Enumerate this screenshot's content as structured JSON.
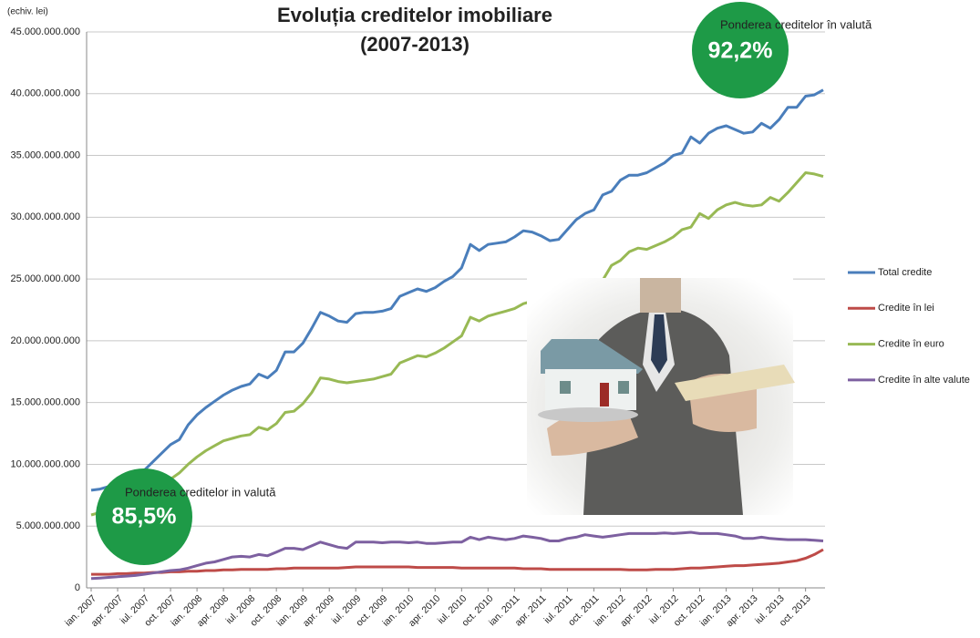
{
  "chart_data": {
    "type": "line",
    "title": "Evoluția creditelor imobiliare",
    "subtitle": "(2007-2013)",
    "y_label": "(echiv. lei)",
    "annotations": [
      {
        "label": "Ponderea creditelor  în valută",
        "value_text": "92,2%",
        "color": "#1e9a47"
      },
      {
        "label": "Ponderea creditelor  in valută",
        "value_text": "85,5%",
        "color": "#1e9a47"
      }
    ],
    "categories": [
      "ian. 2007",
      null,
      null,
      "apr. 2007",
      null,
      null,
      "iul. 2007",
      null,
      null,
      "oct. 2007",
      null,
      null,
      "ian. 2008",
      null,
      null,
      "apr. 2008",
      null,
      null,
      "iul. 2008",
      null,
      null,
      "oct. 2008",
      null,
      null,
      "ian. 2009",
      null,
      null,
      "apr. 2009",
      null,
      null,
      "iul. 2009",
      null,
      null,
      "oct. 2009",
      null,
      null,
      "ian. 2010",
      null,
      null,
      "apr. 2010",
      null,
      null,
      "iul. 2010",
      null,
      null,
      "oct. 2010",
      null,
      null,
      "ian. 2011",
      null,
      null,
      "apr. 2011",
      null,
      null,
      "iul. 2011",
      null,
      null,
      "oct. 2011",
      null,
      null,
      "ian. 2012",
      null,
      null,
      "apr. 2012",
      null,
      null,
      "iul. 2012",
      null,
      null,
      "oct. 2012",
      null,
      null,
      "ian. 2013",
      null,
      null,
      "apr. 2013",
      null,
      null,
      "iul. 2013",
      null,
      null,
      "oct. 2013",
      null,
      null
    ],
    "series": [
      {
        "name": "Total credite",
        "color": "#4a7ebb",
        "values": [
          7900000000.0,
          8000000000.0,
          8200000000.0,
          8300000000.0,
          8600000000.0,
          9000000000.0,
          9500000000.0,
          10200000000.0,
          10900000000.0,
          11600000000.0,
          12000000000.0,
          13200000000.0,
          14000000000.0,
          14600000000.0,
          15100000000.0,
          15600000000.0,
          16000000000.0,
          16300000000.0,
          16500000000.0,
          17300000000.0,
          17000000000.0,
          17600000000.0,
          19100000000.0,
          19100000000.0,
          19800000000.0,
          21000000000.0,
          22300000000.0,
          22000000000.0,
          21600000000.0,
          21500000000.0,
          22200000000.0,
          22300000000.0,
          22300000000.0,
          22400000000.0,
          22600000000.0,
          23600000000.0,
          23900000000.0,
          24200000000.0,
          24000000000.0,
          24300000000.0,
          24800000000.0,
          25200000000.0,
          25900000000.0,
          27800000000.0,
          27300000000.0,
          27800000000.0,
          27900000000.0,
          28000000000.0,
          28400000000.0,
          28900000000.0,
          28800000000.0,
          28500000000.0,
          28100000000.0,
          28200000000.0,
          29000000000.0,
          29800000000.0,
          30300000000.0,
          30600000000.0,
          31800000000.0,
          32100000000.0,
          33000000000.0,
          33400000000.0,
          33400000000.0,
          33600000000.0,
          34000000000.0,
          34400000000.0,
          35000000000.0,
          35200000000.0,
          36500000000.0,
          36000000000.0,
          36800000000.0,
          37200000000.0,
          37400000000.0,
          37100000000.0,
          36800000000.0,
          36900000000.0,
          37600000000.0,
          37200000000.0,
          37900000000.0,
          38900000000.0,
          38900000000.0,
          39800000000.0,
          39900000000.0,
          40300000000.0
        ]
      },
      {
        "name": "Credite în lei",
        "color": "#be4b48",
        "values": [
          1100000000.0,
          1100000000.0,
          1100000000.0,
          1150000000.0,
          1150000000.0,
          1200000000.0,
          1200000000.0,
          1250000000.0,
          1250000000.0,
          1300000000.0,
          1300000000.0,
          1350000000.0,
          1350000000.0,
          1400000000.0,
          1400000000.0,
          1450000000.0,
          1450000000.0,
          1500000000.0,
          1500000000.0,
          1500000000.0,
          1500000000.0,
          1550000000.0,
          1550000000.0,
          1600000000.0,
          1600000000.0,
          1600000000.0,
          1600000000.0,
          1600000000.0,
          1600000000.0,
          1650000000.0,
          1700000000.0,
          1700000000.0,
          1700000000.0,
          1700000000.0,
          1700000000.0,
          1700000000.0,
          1700000000.0,
          1650000000.0,
          1650000000.0,
          1650000000.0,
          1650000000.0,
          1650000000.0,
          1600000000.0,
          1600000000.0,
          1600000000.0,
          1600000000.0,
          1600000000.0,
          1600000000.0,
          1600000000.0,
          1550000000.0,
          1550000000.0,
          1550000000.0,
          1500000000.0,
          1500000000.0,
          1500000000.0,
          1500000000.0,
          1500000000.0,
          1500000000.0,
          1500000000.0,
          1500000000.0,
          1500000000.0,
          1450000000.0,
          1450000000.0,
          1450000000.0,
          1500000000.0,
          1500000000.0,
          1500000000.0,
          1550000000.0,
          1600000000.0,
          1600000000.0,
          1650000000.0,
          1700000000.0,
          1750000000.0,
          1800000000.0,
          1800000000.0,
          1850000000.0,
          1900000000.0,
          1950000000.0,
          2000000000.0,
          2100000000.0,
          2200000000.0,
          2400000000.0,
          2700000000.0,
          3100000000.0
        ]
      },
      {
        "name": "Credite în euro",
        "color": "#98b954",
        "values": [
          5900000000.0,
          6100000000.0,
          6300000000.0,
          6500000000.0,
          6800000000.0,
          7100000000.0,
          7500000000.0,
          7900000000.0,
          8300000000.0,
          8800000000.0,
          9300000000.0,
          10000000000.0,
          10600000000.0,
          11100000000.0,
          11500000000.0,
          11900000000.0,
          12100000000.0,
          12300000000.0,
          12400000000.0,
          13000000000.0,
          12800000000.0,
          13300000000.0,
          14200000000.0,
          14300000000.0,
          14900000000.0,
          15800000000.0,
          17000000000.0,
          16900000000.0,
          16700000000.0,
          16600000000.0,
          16700000000.0,
          16800000000.0,
          16900000000.0,
          17100000000.0,
          17300000000.0,
          18200000000.0,
          18500000000.0,
          18800000000.0,
          18700000000.0,
          19000000000.0,
          19400000000.0,
          19900000000.0,
          20400000000.0,
          21900000000.0,
          21600000000.0,
          22000000000.0,
          22200000000.0,
          22400000000.0,
          22600000000.0,
          23000000000.0,
          23200000000.0,
          23200000000.0,
          22900000000.0,
          22700000000.0,
          23000000000.0,
          23600000000.0,
          24200000000.0,
          24500000000.0,
          24900000000.0,
          26100000000.0,
          26500000000.0,
          27200000000.0,
          27500000000.0,
          27400000000.0,
          27700000000.0,
          28000000000.0,
          28400000000.0,
          29000000000.0,
          29200000000.0,
          30300000000.0,
          29900000000.0,
          30600000000.0,
          31000000000.0,
          31200000000.0,
          31000000000.0,
          30900000000.0,
          31000000000.0,
          31600000000.0,
          31300000000.0,
          32000000000.0,
          32800000000.0,
          33600000000.0,
          33500000000.0,
          33300000000.0
        ]
      },
      {
        "name": "Credite în alte valute",
        "color": "#7d60a0",
        "values": [
          750000000.0,
          800000000.0,
          850000000.0,
          900000000.0,
          950000000.0,
          1000000000.0,
          1100000000.0,
          1200000000.0,
          1300000000.0,
          1400000000.0,
          1450000000.0,
          1600000000.0,
          1800000000.0,
          2000000000.0,
          2100000000.0,
          2300000000.0,
          2500000000.0,
          2550000000.0,
          2500000000.0,
          2700000000.0,
          2600000000.0,
          2900000000.0,
          3200000000.0,
          3200000000.0,
          3100000000.0,
          3400000000.0,
          3700000000.0,
          3500000000.0,
          3300000000.0,
          3200000000.0,
          3700000000.0,
          3700000000.0,
          3700000000.0,
          3650000000.0,
          3700000000.0,
          3700000000.0,
          3650000000.0,
          3700000000.0,
          3600000000.0,
          3600000000.0,
          3650000000.0,
          3700000000.0,
          3700000000.0,
          4100000000.0,
          3900000000.0,
          4100000000.0,
          4000000000.0,
          3900000000.0,
          4000000000.0,
          4200000000.0,
          4100000000.0,
          4000000000.0,
          3800000000.0,
          3800000000.0,
          4000000000.0,
          4100000000.0,
          4300000000.0,
          4200000000.0,
          4100000000.0,
          4200000000.0,
          4300000000.0,
          4400000000.0,
          4400000000.0,
          4400000000.0,
          4400000000.0,
          4450000000.0,
          4400000000.0,
          4450000000.0,
          4500000000.0,
          4400000000.0,
          4400000000.0,
          4400000000.0,
          4300000000.0,
          4200000000.0,
          4000000000.0,
          4000000000.0,
          4100000000.0,
          4000000000.0,
          3950000000.0,
          3900000000.0,
          3900000000.0,
          3900000000.0,
          3850000000.0,
          3800000000.0
        ]
      }
    ],
    "ylim": [
      0,
      45000000000
    ],
    "yticks": [
      0,
      {
        "value": 5000000000,
        "label": "5.000.000.000"
      },
      {
        "value": 10000000000,
        "label": "10.000.000.000"
      },
      {
        "value": 15000000000,
        "label": "15.000.000.000"
      },
      {
        "value": 20000000000,
        "label": "20.000.000.000"
      },
      {
        "value": 25000000000,
        "label": "25.000.000.000"
      },
      {
        "value": 30000000000,
        "label": "30.000.000.000"
      },
      {
        "value": 35000000000,
        "label": "35.000.000.000"
      },
      {
        "value": 40000000000,
        "label": "40.000.000.000"
      },
      {
        "value": 45000000000,
        "label": "45.000.000.000"
      }
    ],
    "grid": true,
    "legend": "right"
  }
}
